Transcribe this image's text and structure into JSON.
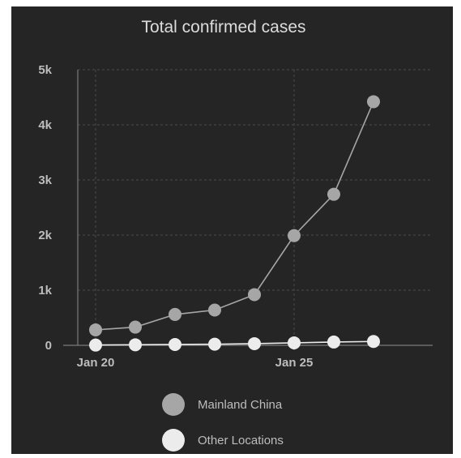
{
  "colors": {
    "panel_bg": "#252525",
    "title": "#dcdcdc",
    "tick_label": "#bdbdbd",
    "axis": "#7a7a7a",
    "grid": "#4a4a4a",
    "mainland_china": "#a6a6a6",
    "other_locations": "#ececec"
  },
  "chart_data": {
    "type": "line",
    "title": "Total confirmed cases",
    "xlabel": "",
    "ylabel": "",
    "x": [
      "Jan 20",
      "Jan 21",
      "Jan 22",
      "Jan 23",
      "Jan 24",
      "Jan 25",
      "Jan 26",
      "Jan 27"
    ],
    "x_tick_labels": [
      "Jan 20",
      "Jan 25"
    ],
    "y_tick_labels": [
      "0",
      "1k",
      "2k",
      "3k",
      "4k",
      "5k"
    ],
    "ylim": [
      0,
      5000
    ],
    "grid": true,
    "legend_position": "bottom",
    "series": [
      {
        "name": "Mainland China",
        "color_key": "mainland_china",
        "values": [
          280,
          330,
          560,
          640,
          920,
          1990,
          2740,
          4420
        ]
      },
      {
        "name": "Other Locations",
        "color_key": "other_locations",
        "values": [
          5,
          10,
          15,
          20,
          30,
          45,
          60,
          70
        ]
      }
    ]
  }
}
